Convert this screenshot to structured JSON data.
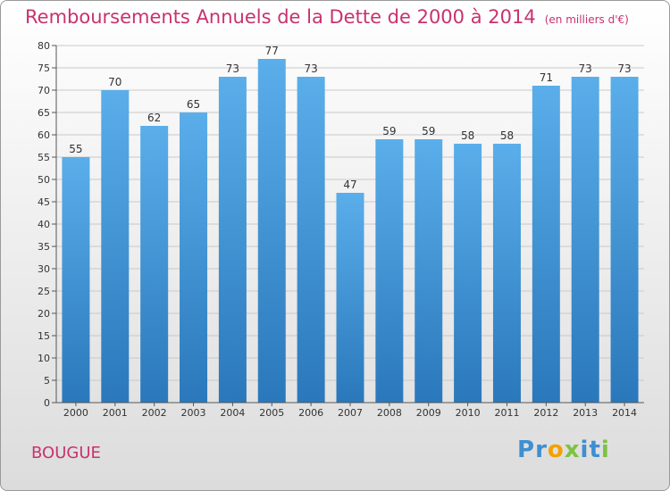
{
  "header": {
    "title": "Remboursements Annuels de la Dette de 2000 à 2014",
    "unit": "(en milliers d'€)"
  },
  "footer": {
    "place": "BOUGUE",
    "logo": "Proxiti"
  },
  "colors": {
    "title": "#c8326e",
    "bar_top": "#5aaeea",
    "bar_bottom": "#2a78bb",
    "grid": "#c9c9c9"
  },
  "chart_data": {
    "type": "bar",
    "title": "Remboursements Annuels de la Dette de 2000 à 2014",
    "ylabel": "",
    "xlabel": "",
    "categories": [
      "2000",
      "2001",
      "2002",
      "2003",
      "2004",
      "2005",
      "2006",
      "2007",
      "2008",
      "2009",
      "2010",
      "2011",
      "2012",
      "2013",
      "2014"
    ],
    "values": [
      55,
      70,
      62,
      65,
      73,
      77,
      73,
      47,
      59,
      59,
      58,
      58,
      71,
      73,
      73
    ],
    "ylim": [
      0,
      80
    ],
    "ytick_step": 5,
    "grid": true
  }
}
